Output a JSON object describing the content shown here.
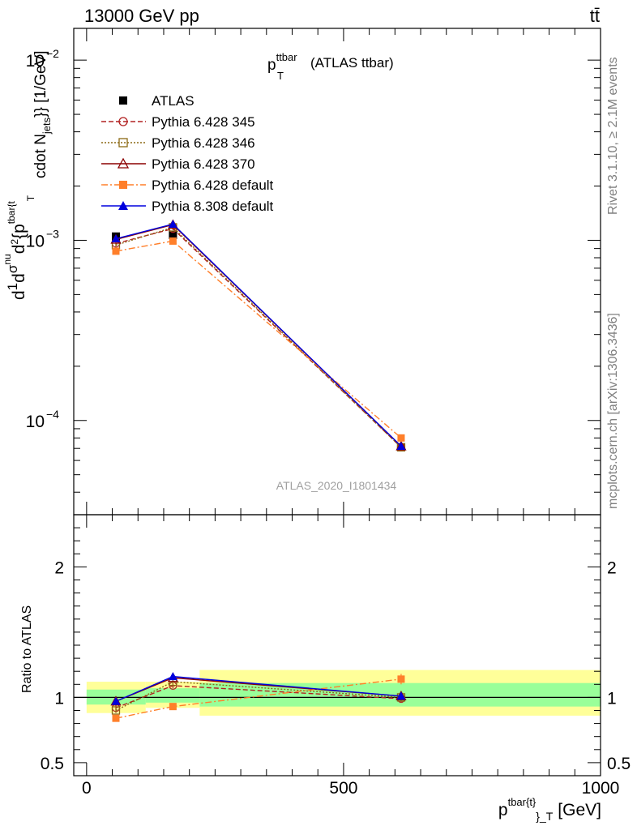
{
  "header": {
    "left": "13000 GeV pp",
    "right": "tt̄"
  },
  "side_labels": {
    "rivet": "Rivet 3.1.10, ≥ 2.1M events",
    "mcplots": "mcplots.cern.ch [arXiv:1306.3436]"
  },
  "chart_data": [
    {
      "type": "line",
      "panel": "main",
      "title_main": "p",
      "title_sup": "ttbar",
      "title_sub": "T",
      "title_rest": "(ATLAS ttbar)",
      "watermark": "ATLAS_2020_I1801434",
      "ylabel": "d¹d²σ^{nu} / σd² {p^{tbar{t}}_T} cdot N_{jets}} [1/GeV]",
      "ylabel_parts": {
        "top": "d",
        "frac_num": "1",
        "frac_den": "σ",
        "d2": "d",
        "sigma": "σ",
        "sup_nu": "nu",
        "d2b": "d",
        "sup_2": "2",
        "brace": "{p",
        "sup_tbar": "tbar{t",
        "sub_T": "T",
        "tail": "cdot N",
        "sub_jets": "jets",
        "end": "}} [1/GeV]"
      },
      "yscale": "log",
      "ylim": [
        3e-05,
        0.015
      ],
      "xlim": [
        -25,
        1000
      ],
      "yticks_major": [
        {
          "value": 0.0001,
          "base": "10",
          "exp": "−4"
        },
        {
          "value": 0.001,
          "base": "10",
          "exp": "−3"
        },
        {
          "value": 0.01,
          "base": "10",
          "exp": "−2"
        }
      ],
      "legend_position": "top-left",
      "series": [
        {
          "name": "ATLAS",
          "color": "#000000",
          "marker": "square-filled",
          "dash": "none",
          "x": [
            57,
            168,
            612
          ],
          "y": [
            0.00105,
            0.00107,
            7.1e-05
          ],
          "yerr": [
            4e-05,
            4e-05,
            3e-06
          ]
        },
        {
          "name": "Pythia 6.428 345",
          "color": "#b22222",
          "marker": "circle-open",
          "dash": "6,3",
          "x": [
            57,
            168,
            612
          ],
          "y": [
            0.00096,
            0.00116,
            7.1e-05
          ],
          "yerr": [
            2e-05,
            2e-05,
            2e-06
          ]
        },
        {
          "name": "Pythia 6.428 346",
          "color": "#8b6914",
          "marker": "square-open",
          "dash": "2,2",
          "x": [
            57,
            168,
            612
          ],
          "y": [
            0.00094,
            0.00118,
            7.1e-05
          ],
          "yerr": [
            2e-05,
            2e-05,
            2e-06
          ]
        },
        {
          "name": "Pythia 6.428 370",
          "color": "#8b0000",
          "marker": "triangle-open",
          "dash": "none",
          "x": [
            57,
            168,
            612
          ],
          "y": [
            0.00101,
            0.00122,
            7.2e-05
          ],
          "yerr": [
            2e-05,
            2e-05,
            2e-06
          ]
        },
        {
          "name": "Pythia 6.428 default",
          "color": "#ff7f2a",
          "marker": "square-filled",
          "dash": "8,3,2,3",
          "x": [
            57,
            168,
            612
          ],
          "y": [
            0.00087,
            0.00099,
            8e-05
          ],
          "yerr": [
            2e-05,
            2e-05,
            3e-06
          ]
        },
        {
          "name": "Pythia 8.308 default",
          "color": "#0000dd",
          "marker": "triangle-filled",
          "dash": "none",
          "x": [
            57,
            168,
            612
          ],
          "y": [
            0.00102,
            0.00123,
            7.2e-05
          ],
          "yerr": [
            2e-05,
            2e-05,
            2e-06
          ]
        }
      ]
    },
    {
      "type": "line",
      "panel": "ratio",
      "ylabel": "Ratio to ATLAS",
      "xlabel_main": "p",
      "xlabel_sup": "tbar{t}",
      "xlabel_sub": "}_T",
      "xlabel_unit": "[GeV]",
      "ylim": [
        0.4,
        2.4
      ],
      "xlim": [
        -25,
        1000
      ],
      "yticks_major": [
        {
          "value": 0.5,
          "label": "0.5"
        },
        {
          "value": 1,
          "label": "1"
        },
        {
          "value": 2,
          "label": "2"
        }
      ],
      "xticks_major": [
        {
          "value": 0,
          "label": "0"
        },
        {
          "value": 500,
          "label": "500"
        },
        {
          "value": 1000,
          "label": "1000"
        }
      ],
      "bands": [
        {
          "x0": 0,
          "x1": 115,
          "inner": [
            0.945,
            1.06
          ],
          "outer": [
            0.88,
            1.12
          ]
        },
        {
          "x0": 115,
          "x1": 220,
          "inner": [
            0.96,
            1.07
          ],
          "outer": [
            0.92,
            1.12
          ]
        },
        {
          "x0": 220,
          "x1": 1000,
          "inner": [
            0.93,
            1.11
          ],
          "outer": [
            0.86,
            1.21
          ]
        }
      ],
      "series": [
        {
          "name": "Pythia 6.428 345",
          "color": "#b22222",
          "marker": "circle-open",
          "dash": "6,3",
          "x": [
            57,
            168,
            612
          ],
          "y": [
            0.92,
            1.09,
            0.99
          ],
          "yerr": [
            0.02,
            0.02,
            0.03
          ]
        },
        {
          "name": "Pythia 6.428 346",
          "color": "#8b6914",
          "marker": "square-open",
          "dash": "2,2",
          "x": [
            57,
            168,
            612
          ],
          "y": [
            0.9,
            1.12,
            1.0
          ],
          "yerr": [
            0.02,
            0.02,
            0.03
          ]
        },
        {
          "name": "Pythia 6.428 370",
          "color": "#8b0000",
          "marker": "triangle-open",
          "dash": "none",
          "x": [
            57,
            168,
            612
          ],
          "y": [
            0.97,
            1.15,
            1.01
          ],
          "yerr": [
            0.02,
            0.02,
            0.03
          ]
        },
        {
          "name": "Pythia 6.428 default",
          "color": "#ff7f2a",
          "marker": "square-filled",
          "dash": "8,3,2,3",
          "x": [
            57,
            168,
            612
          ],
          "y": [
            0.84,
            0.93,
            1.14
          ],
          "yerr": [
            0.02,
            0.02,
            0.04
          ]
        },
        {
          "name": "Pythia 8.308 default",
          "color": "#0000dd",
          "marker": "triangle-filled",
          "dash": "none",
          "x": [
            57,
            168,
            612
          ],
          "y": [
            0.97,
            1.16,
            1.01
          ],
          "yerr": [
            0.02,
            0.02,
            0.03
          ]
        }
      ]
    }
  ]
}
